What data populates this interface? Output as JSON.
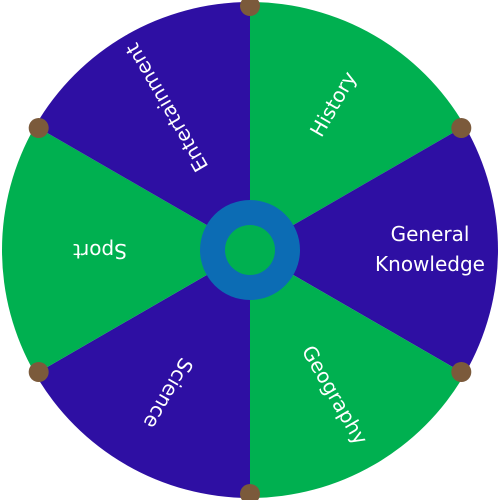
{
  "wheel": {
    "segments": [
      {
        "label": "History",
        "color": "#00b050"
      },
      {
        "label": "General\nKnowledge",
        "color": "#2e0fa3"
      },
      {
        "label": "Geography",
        "color": "#00b050"
      },
      {
        "label": "Science",
        "color": "#2e0fa3"
      },
      {
        "label": "Sport",
        "color": "#00b050"
      },
      {
        "label": "Entertainment",
        "color": "#2e0fa3"
      }
    ],
    "colors": {
      "green": "#00b050",
      "blue": "#2e0fa3",
      "hub_ring": "#0c6cb4",
      "hub_center": "#00b050",
      "peg": "#7b5a3b"
    }
  }
}
